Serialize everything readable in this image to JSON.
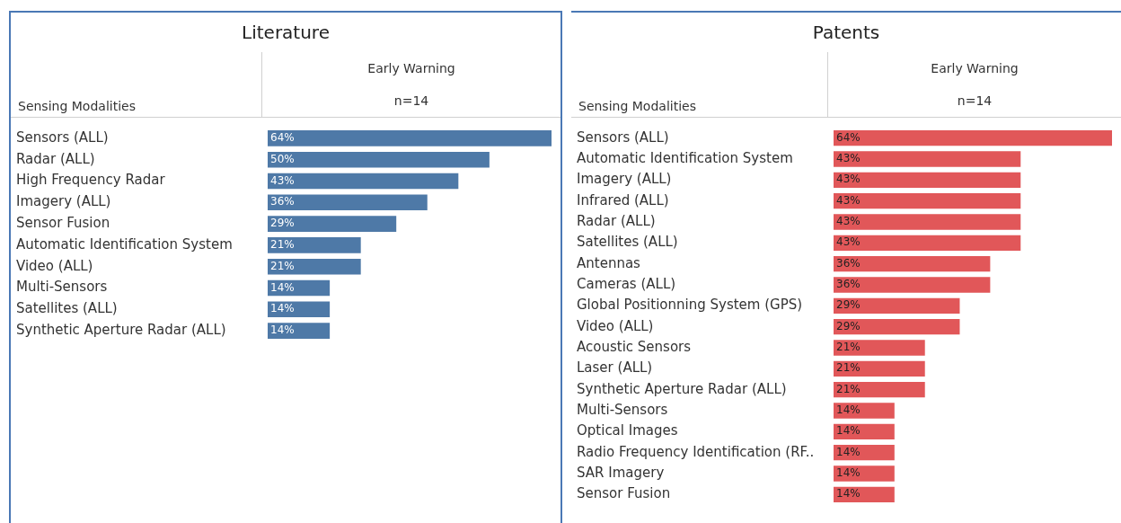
{
  "chart_data": [
    {
      "type": "bar",
      "orientation": "horizontal",
      "title": "Literature",
      "ylabel": "Sensing Modalities",
      "xlabel": "Early Warning",
      "subtitle": "n=14",
      "tick_labels": "y",
      "categories": [
        "Sensors (ALL)",
        "Radar (ALL)",
        "High Frequency Radar",
        "Imagery (ALL)",
        "Sensor Fusion",
        "Automatic Identification System",
        "Video (ALL)",
        "Multi-Sensors",
        "Satellites (ALL)",
        "Synthetic Aperture Radar (ALL)"
      ],
      "values": [
        64,
        50,
        43,
        36,
        29,
        21,
        21,
        14,
        14,
        14
      ],
      "value_labels": [
        "64%",
        "50%",
        "43%",
        "36%",
        "29%",
        "21%",
        "21%",
        "14%",
        "14%",
        "14%"
      ],
      "color": "#4e79a7"
    },
    {
      "type": "bar",
      "orientation": "horizontal",
      "title": "Patents",
      "ylabel": "Sensing Modalities",
      "xlabel": "Early Warning",
      "subtitle": "n=14",
      "tick_labels": "y",
      "categories": [
        "Sensors (ALL)",
        "Automatic Identification System",
        "Imagery (ALL)",
        "Infrared (ALL)",
        "Radar (ALL)",
        "Satellites (ALL)",
        "Antennas",
        "Cameras (ALL)",
        "Global Positionning System (GPS)",
        "Video (ALL)",
        "Acoustic Sensors",
        "Laser (ALL)",
        "Synthetic Aperture Radar (ALL)",
        "Multi-Sensors",
        "Optical Images",
        "Radio Frequency Identification (RF..",
        "SAR Imagery",
        "Sensor Fusion"
      ],
      "values": [
        64,
        43,
        43,
        43,
        43,
        43,
        36,
        36,
        29,
        29,
        21,
        21,
        21,
        14,
        14,
        14,
        14,
        14
      ],
      "value_labels": [
        "64%",
        "43%",
        "43%",
        "43%",
        "43%",
        "43%",
        "36%",
        "36%",
        "29%",
        "29%",
        "21%",
        "21%",
        "21%",
        "14%",
        "14%",
        "14%",
        "14%",
        "14%"
      ],
      "color": "#e15759"
    }
  ]
}
